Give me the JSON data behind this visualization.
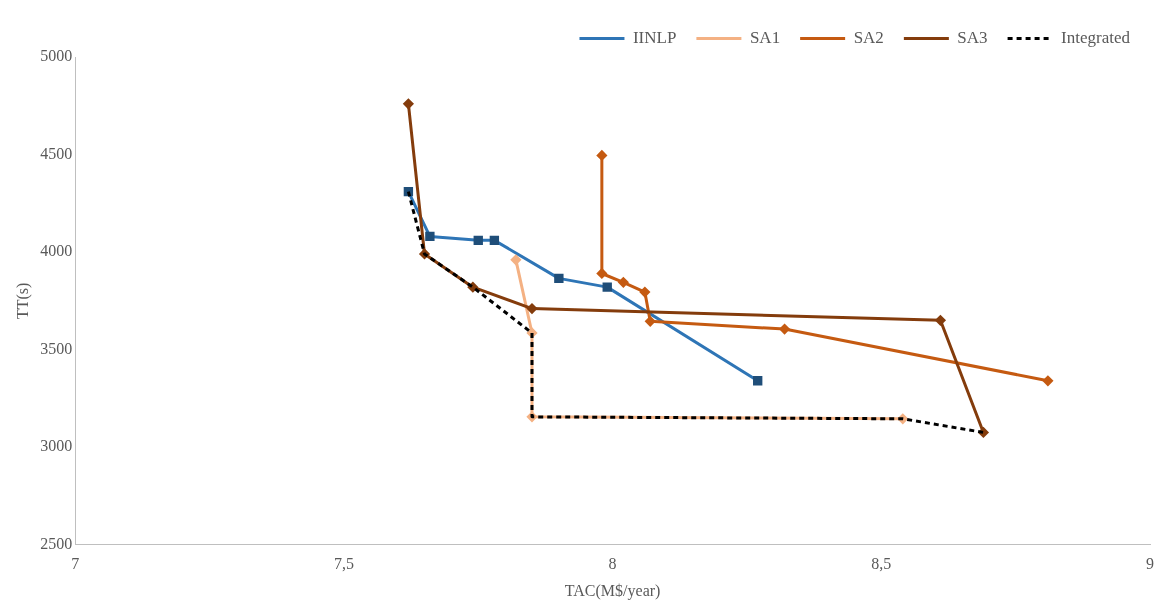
{
  "chart_data": {
    "type": "line",
    "xlabel": "TAC(M$/year)",
    "ylabel": "TT(s)",
    "xlim": [
      7,
      9
    ],
    "xticks": [
      7,
      {
        "value": 7.5,
        "label": "7,5"
      },
      8,
      {
        "value": 8.5,
        "label": "8,5"
      },
      9
    ],
    "ylim": [
      2500,
      5000
    ],
    "yticks": [
      2500,
      3000,
      3500,
      4000,
      4500,
      5000
    ],
    "grid": false,
    "legend": "top right",
    "series": [
      {
        "name": "IINLP",
        "color": "#2e75b6",
        "marker": "square",
        "line_style": "solid",
        "x": [
          7.62,
          7.66,
          7.75,
          7.78,
          7.9,
          7.99,
          8.27
        ],
        "values": [
          4310,
          4080,
          4060,
          4060,
          3865,
          3820,
          3340
        ]
      },
      {
        "name": "SA1",
        "color": "#f4b183",
        "marker": "diamond",
        "line_style": "solid",
        "x": [
          7.82,
          7.85,
          7.85,
          8.54
        ],
        "values": [
          3960,
          3585,
          3155,
          3145
        ]
      },
      {
        "name": "SA2",
        "color": "#c55a11",
        "marker": "diamond",
        "line_style": "solid",
        "x": [
          7.98,
          7.98,
          8.02,
          8.06,
          8.07,
          8.32,
          8.81
        ],
        "values": [
          4495,
          3890,
          3845,
          3795,
          3645,
          3605,
          3340
        ]
      },
      {
        "name": "SA3",
        "color": "#843c0c",
        "marker": "diamond",
        "line_style": "solid",
        "x": [
          7.62,
          7.65,
          7.74,
          7.85,
          8.61,
          8.69
        ],
        "values": [
          4760,
          3990,
          3820,
          3710,
          3650,
          3075
        ]
      },
      {
        "name": "Integrated",
        "color": "#000000",
        "marker": "none",
        "line_style": "dashed",
        "x": [
          7.62,
          7.65,
          7.74,
          7.85,
          7.85,
          8.54,
          8.69
        ],
        "values": [
          4310,
          3990,
          3820,
          3585,
          3155,
          3145,
          3075
        ]
      }
    ]
  }
}
